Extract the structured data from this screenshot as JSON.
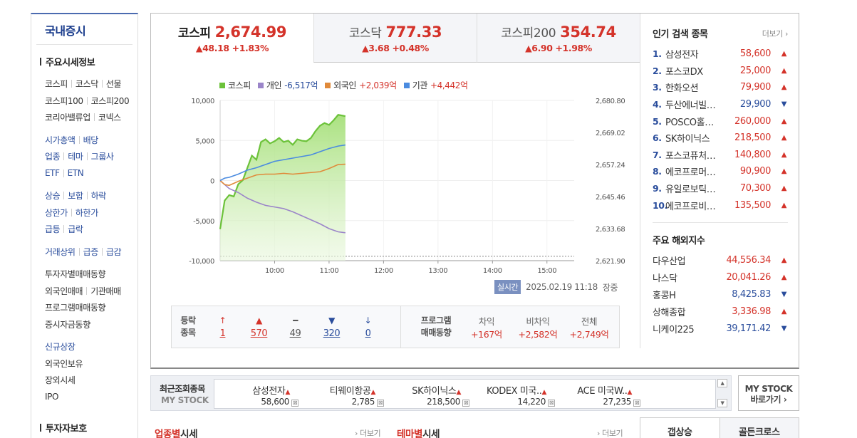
{
  "sidebar": {
    "title": "국내증시",
    "section_main": "주요시세정보",
    "rows": [
      [
        "코스피",
        "코스닥",
        "선물"
      ],
      [
        "코스피100",
        "코스피200"
      ],
      [
        "코리아밸류업",
        "코넥스"
      ],
      null,
      [
        "시가총액",
        "배당"
      ],
      [
        "업종",
        "테마",
        "그룹사"
      ],
      [
        "ETF",
        "ETN"
      ],
      null,
      [
        "상승",
        "보합",
        "하락"
      ],
      [
        "상한가",
        "하한가"
      ],
      [
        "급등",
        "급락"
      ],
      null,
      [
        "거래상위",
        "급증",
        "급감"
      ],
      null,
      [
        "투자자별매매동향"
      ],
      [
        "외국인매매",
        "기관매매"
      ],
      [
        "프로그램매매동향"
      ],
      [
        "증시자금동향"
      ],
      null,
      [
        "신규상장"
      ],
      [
        "외국인보유"
      ],
      [
        "장외시세"
      ],
      [
        "IPO"
      ]
    ],
    "section_bottom": "투자자보호"
  },
  "indices": [
    {
      "name": "코스피",
      "value": "2,674.99",
      "change": "▲48.18 +1.83%"
    },
    {
      "name": "코스닥",
      "value": "777.33",
      "change": "▲3.68 +0.48%"
    },
    {
      "name": "코스피200",
      "value": "354.74",
      "change": "▲6.90 +1.98%"
    }
  ],
  "legend": [
    {
      "name": "코스피",
      "value": "",
      "color": "#6cc23a",
      "cls": ""
    },
    {
      "name": "개인",
      "value": "-6,517억",
      "color": "#9b85c9",
      "cls": "neg"
    },
    {
      "name": "외국인",
      "value": "+2,039억",
      "color": "#e08a3a",
      "cls": "pos"
    },
    {
      "name": "기관",
      "value": "+4,442억",
      "color": "#4a8be0",
      "cls": "pos"
    }
  ],
  "chart_data": {
    "type": "line",
    "x_ticks": [
      "10:00",
      "11:00",
      "12:00",
      "13:00",
      "14:00",
      "15:00"
    ],
    "left_axis": {
      "ticks": [
        "10,000",
        "5,000",
        "0",
        "-5,000",
        "-10,000"
      ],
      "range": [
        -10000,
        10000
      ],
      "unit": "억"
    },
    "right_axis": {
      "ticks": [
        "2,680.80",
        "2,669.02",
        "2,657.24",
        "2,645.46",
        "2,633.68",
        "2,621.90"
      ],
      "range": [
        2621.9,
        2680.8
      ]
    },
    "x_range_minutes": [
      540,
      930
    ],
    "series": [
      {
        "name": "코스피",
        "axis": "right",
        "color": "#6cc23a",
        "t": [
          540,
          545,
          550,
          555,
          560,
          565,
          570,
          575,
          580,
          585,
          590,
          595,
          600,
          605,
          610,
          615,
          620,
          625,
          630,
          635,
          640,
          645,
          650,
          655,
          660,
          665,
          670,
          675,
          678
        ],
        "values": [
          2633.5,
          2644.0,
          2646.0,
          2645.5,
          2650.0,
          2651.5,
          2656.0,
          2660.5,
          2659.0,
          2665.5,
          2666.5,
          2665.0,
          2665.8,
          2667.0,
          2665.5,
          2666.0,
          2664.5,
          2666.5,
          2666.0,
          2665.8,
          2667.0,
          2669.5,
          2671.5,
          2672.5,
          2671.8,
          2673.5,
          2675.5,
          2675.2,
          2674.99
        ]
      },
      {
        "name": "개인",
        "axis": "left",
        "color": "#9b85c9",
        "t": [
          540,
          545,
          550,
          560,
          570,
          580,
          590,
          600,
          610,
          620,
          630,
          640,
          650,
          660,
          670,
          678
        ],
        "values": [
          0,
          -500,
          -1000,
          -1500,
          -2200,
          -2700,
          -3100,
          -3300,
          -3500,
          -3900,
          -4400,
          -4900,
          -5400,
          -6000,
          -6400,
          -6517
        ]
      },
      {
        "name": "외국인",
        "axis": "left",
        "color": "#e08a3a",
        "t": [
          540,
          545,
          550,
          560,
          570,
          580,
          590,
          600,
          610,
          620,
          630,
          640,
          650,
          660,
          670,
          678
        ],
        "values": [
          0,
          -500,
          -600,
          -100,
          300,
          700,
          800,
          800,
          900,
          800,
          900,
          1000,
          1100,
          1500,
          2000,
          2039
        ]
      },
      {
        "name": "기관",
        "axis": "left",
        "color": "#4a8be0",
        "t": [
          540,
          545,
          550,
          560,
          570,
          580,
          590,
          600,
          610,
          620,
          630,
          640,
          650,
          660,
          670,
          678
        ],
        "values": [
          0,
          300,
          400,
          800,
          1300,
          1600,
          2000,
          2400,
          2600,
          2800,
          3000,
          3200,
          3600,
          4000,
          4300,
          4442
        ]
      }
    ],
    "reference_line": {
      "axis": "right",
      "value": 2623.5
    }
  },
  "status": {
    "badge": "실시간",
    "time": "2025.02.19 11:18",
    "phase": "장중"
  },
  "stats": {
    "label_l1": "등락",
    "label_l2": "종목",
    "counts": [
      {
        "icon": "↑",
        "n": "1",
        "cls": "up"
      },
      {
        "icon": "▲",
        "n": "570",
        "cls": "up"
      },
      {
        "icon": "━",
        "n": "49",
        "cls": "fl"
      },
      {
        "icon": "▼",
        "n": "320",
        "cls": "dn"
      },
      {
        "icon": "↓",
        "n": "0",
        "cls": "dn"
      }
    ],
    "prog_l1": "프로그램",
    "prog_l2": "매매동향",
    "program": [
      {
        "head": "차익",
        "value": "+167억"
      },
      {
        "head": "비차익",
        "value": "+2,582억"
      },
      {
        "head": "전체",
        "value": "+2,749억"
      }
    ]
  },
  "popular": {
    "title": "인기 검색 종목",
    "more": "더보기",
    "items": [
      {
        "rank": "1.",
        "name": "삼성전자",
        "price": "58,600",
        "dir": "up"
      },
      {
        "rank": "2.",
        "name": "포스코DX",
        "price": "25,000",
        "dir": "up"
      },
      {
        "rank": "3.",
        "name": "한화오션",
        "price": "79,900",
        "dir": "up"
      },
      {
        "rank": "4.",
        "name": "두산에너빌…",
        "price": "29,900",
        "dir": "dn"
      },
      {
        "rank": "5.",
        "name": "POSCO홀…",
        "price": "260,000",
        "dir": "up"
      },
      {
        "rank": "6.",
        "name": "SK하이닉스",
        "price": "218,500",
        "dir": "up"
      },
      {
        "rank": "7.",
        "name": "포스코퓨처…",
        "price": "140,800",
        "dir": "up"
      },
      {
        "rank": "8.",
        "name": "에코프로머…",
        "price": "90,900",
        "dir": "up"
      },
      {
        "rank": "9.",
        "name": "유일로보틱…",
        "price": "70,300",
        "dir": "up"
      },
      {
        "rank": "10.",
        "name": "에코프로비…",
        "price": "135,500",
        "dir": "up"
      }
    ]
  },
  "overseas": {
    "title": "주요 해외지수",
    "items": [
      {
        "name": "다우산업",
        "price": "44,556.34",
        "dir": "up"
      },
      {
        "name": "나스닥",
        "price": "20,041.26",
        "dir": "up"
      },
      {
        "name": "홍콩H",
        "price": "8,425.83",
        "dir": "dn"
      },
      {
        "name": "상해종합",
        "price": "3,336.98",
        "dir": "up"
      },
      {
        "name": "니케이225",
        "price": "39,171.42",
        "dir": "dn"
      }
    ]
  },
  "recent": {
    "label1": "최근조회종목",
    "label2": "MY STOCK",
    "items": [
      {
        "name": "삼성전자",
        "price": "58,600"
      },
      {
        "name": "티웨이항공",
        "price": "2,785"
      },
      {
        "name": "SK하이닉스",
        "price": "218,500"
      },
      {
        "name": "KODEX 미국..",
        "price": "14,220"
      },
      {
        "name": "ACE 미국W..",
        "price": "27,235"
      }
    ],
    "x_glyph": "⊠"
  },
  "mystock_btn": {
    "l1": "MY STOCK",
    "l2": "바로가기 ›"
  },
  "bottom": {
    "left_a": "업종별",
    "left_b": "시세",
    "mid_a": "테마별",
    "mid_b": "시세",
    "more": "더보기",
    "tab1": "갭상승",
    "tab2": "골든크로스"
  }
}
